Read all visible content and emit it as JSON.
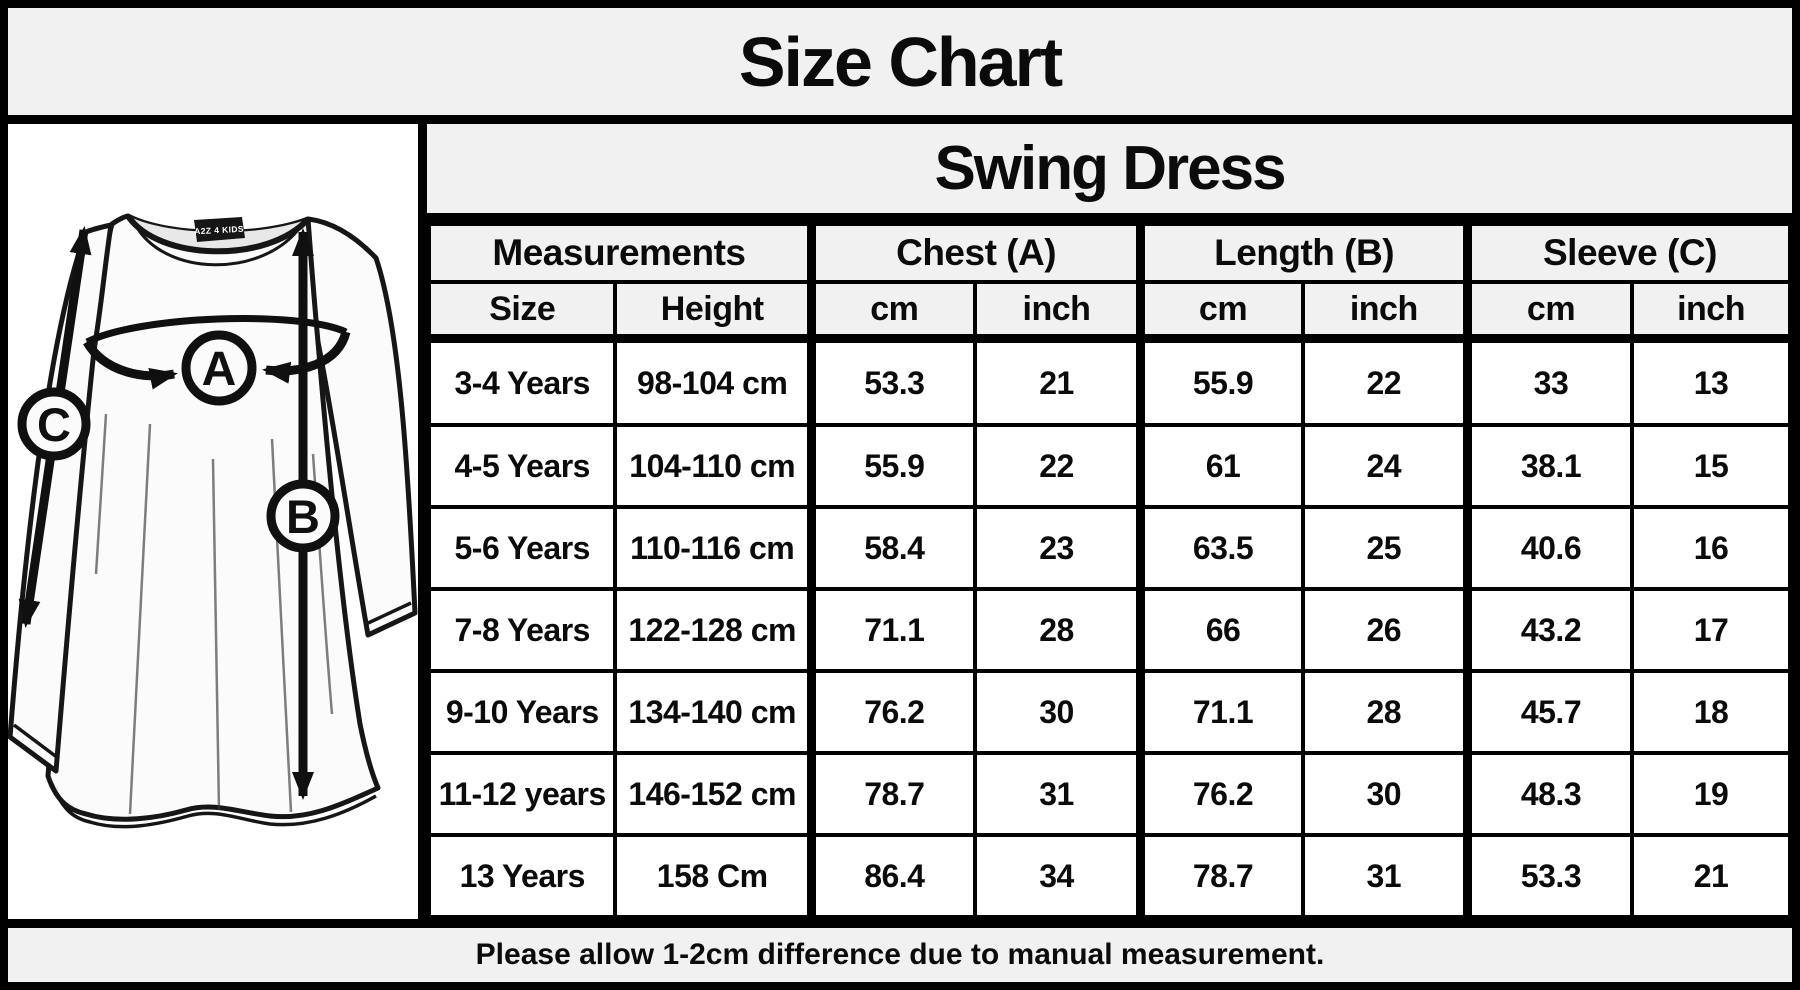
{
  "title": "Size Chart",
  "product": "Swing Dress",
  "footer_note": "Please allow 1-2cm difference due to manual measurement.",
  "diagram": {
    "point_a": "A",
    "point_b": "B",
    "point_c": "C",
    "neck_tag": "A2Z 4 KIDS"
  },
  "table": {
    "group_headers": [
      {
        "label": "Measurements",
        "span": 2
      },
      {
        "label": "Chest (A)",
        "span": 2
      },
      {
        "label": "Length (B)",
        "span": 2
      },
      {
        "label": "Sleeve (C)",
        "span": 2
      }
    ],
    "sub_headers": [
      "Size",
      "Height",
      "cm",
      "inch",
      "cm",
      "inch",
      "cm",
      "inch"
    ],
    "rows": [
      [
        "3-4 Years",
        "98-104 cm",
        "53.3",
        "21",
        "55.9",
        "22",
        "33",
        "13"
      ],
      [
        "4-5 Years",
        "104-110 cm",
        "55.9",
        "22",
        "61",
        "24",
        "38.1",
        "15"
      ],
      [
        "5-6 Years",
        "110-116 cm",
        "58.4",
        "23",
        "63.5",
        "25",
        "40.6",
        "16"
      ],
      [
        "7-8 Years",
        "122-128 cm",
        "71.1",
        "28",
        "66",
        "26",
        "43.2",
        "17"
      ],
      [
        "9-10 Years",
        "134-140 cm",
        "76.2",
        "30",
        "71.1",
        "28",
        "45.7",
        "18"
      ],
      [
        "11-12 years",
        "146-152 cm",
        "78.7",
        "31",
        "76.2",
        "30",
        "48.3",
        "19"
      ],
      [
        "13 Years",
        "158 Cm",
        "86.4",
        "34",
        "78.7",
        "31",
        "53.3",
        "21"
      ]
    ]
  },
  "colors": {
    "header_bg": "#f1f1f1",
    "cell_bg": "#ffffff",
    "border": "#000000",
    "text": "#0b0b0b",
    "tag_bg": "#161616"
  }
}
